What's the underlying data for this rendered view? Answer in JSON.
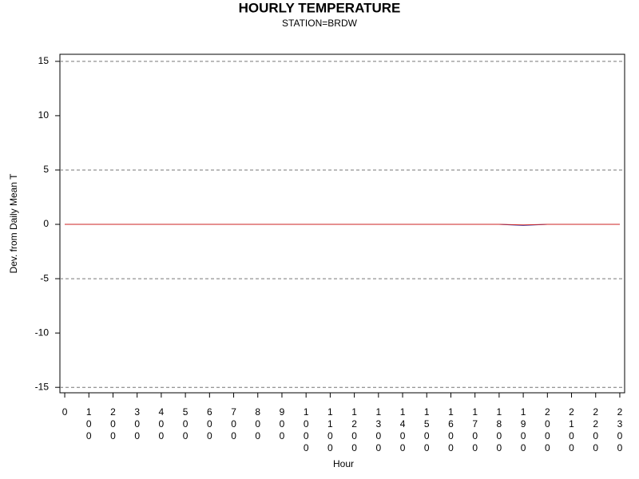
{
  "chart_data": {
    "type": "line",
    "title": "HOURLY TEMPERATURE",
    "subtitle": "STATION=BRDW",
    "xlabel": "Hour",
    "ylabel": "Dev. from Daily Mean T",
    "x": [
      0,
      100,
      200,
      300,
      400,
      500,
      600,
      700,
      800,
      900,
      1000,
      1100,
      1200,
      1300,
      1400,
      1500,
      1600,
      1700,
      1800,
      1900,
      2000,
      2100,
      2200,
      2300
    ],
    "series": [
      {
        "color": "#1f3fbf",
        "values": [
          0,
          0,
          0,
          0,
          0,
          0,
          0,
          0,
          0,
          0,
          0,
          0,
          0,
          0,
          0,
          0,
          0,
          0,
          0,
          -0.1,
          0,
          0,
          0,
          0
        ]
      },
      {
        "color": "#cc2222",
        "values": [
          0,
          0,
          0,
          0,
          0,
          0,
          0,
          0,
          0,
          0,
          0,
          0,
          0,
          0,
          0,
          0,
          0,
          0,
          0,
          -0.05,
          0,
          0,
          0,
          0
        ]
      }
    ],
    "xlim": [
      -20,
      2320
    ],
    "ylim": [
      -15.5,
      15.65
    ],
    "xticks": [
      0,
      100,
      200,
      300,
      400,
      500,
      600,
      700,
      800,
      900,
      1000,
      1100,
      1200,
      1300,
      1400,
      1500,
      1600,
      1700,
      1800,
      1900,
      2000,
      2100,
      2200,
      2300
    ],
    "yticks": [
      -15,
      -10,
      -5,
      0,
      5,
      10,
      15
    ],
    "reference_lines": [
      -15,
      -5,
      5,
      15
    ]
  }
}
